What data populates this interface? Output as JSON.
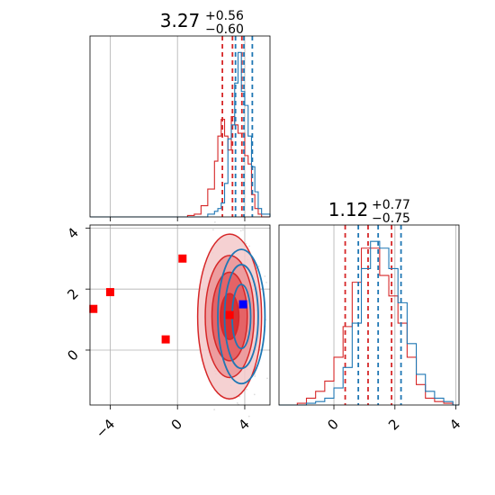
{
  "chart_data": [
    {
      "panel": "marginal-param-1",
      "type": "histogram",
      "title": {
        "value": "3.27",
        "plus": "+0.56",
        "minus": "−0.60"
      },
      "xlim": [
        -5.2,
        5.5
      ],
      "grid": true,
      "series": [
        {
          "color": "#d62728",
          "bins": [
            -5.2,
            -4.2,
            -3.2,
            -2.2,
            -1.2,
            -0.2,
            0.6,
            1.0,
            1.4,
            1.8,
            2.2,
            2.4,
            2.6,
            2.8,
            3.0,
            3.2,
            3.4,
            3.6,
            3.8,
            4.0,
            4.2,
            4.4,
            4.6,
            4.8,
            5.0,
            5.5
          ],
          "counts": [
            0,
            0,
            0,
            0,
            0,
            0,
            1,
            2,
            8,
            20,
            40,
            58,
            70,
            58,
            48,
            72,
            66,
            60,
            60,
            44,
            38,
            16,
            6,
            2,
            0
          ],
          "quantiles": [
            2.67,
            3.27,
            3.83
          ]
        },
        {
          "color": "#1f77b4",
          "bins": [
            -5.2,
            -4.2,
            -3.2,
            -2.2,
            -1.2,
            -0.2,
            0.6,
            1.0,
            1.4,
            1.8,
            2.2,
            2.4,
            2.6,
            2.8,
            3.0,
            3.2,
            3.4,
            3.6,
            3.8,
            4.0,
            4.2,
            4.4,
            4.6,
            4.8,
            5.0,
            5.5
          ],
          "counts": [
            0,
            0,
            0,
            0,
            0,
            0,
            0,
            0,
            0,
            2,
            4,
            6,
            10,
            24,
            56,
            66,
            96,
            118,
            90,
            80,
            58,
            36,
            18,
            6,
            2
          ],
          "quantiles": [
            3.45,
            3.95,
            4.45
          ]
        }
      ]
    },
    {
      "panel": "joint-param-1-vs-param-2",
      "type": "contour",
      "xlim": [
        -5.2,
        5.5
      ],
      "ylim": [
        -1.8,
        4.1
      ],
      "xticks": [
        "−4",
        "0",
        "4"
      ],
      "yticks": [
        "0",
        "2",
        "4"
      ],
      "grid": true,
      "series": [
        {
          "color": "#d62728",
          "center": [
            3.1,
            1.1
          ],
          "levels": [
            [
              0.55,
              0.75
            ],
            [
              1.05,
              1.45
            ],
            [
              1.45,
              2.0
            ],
            [
              1.9,
              2.7
            ]
          ]
        },
        {
          "color": "#1f77b4",
          "center": [
            3.8,
            1.1
          ],
          "levels": [
            [
              0.55,
              1.05
            ],
            [
              1.0,
              1.7
            ],
            [
              1.4,
              2.2
            ]
          ]
        }
      ],
      "markers": [
        {
          "color": "#ff0000",
          "points": [
            [
              -4.0,
              1.9
            ],
            [
              -0.7,
              0.35
            ],
            [
              0.3,
              3.0
            ],
            [
              -5.0,
              1.35
            ],
            [
              3.1,
              1.15
            ]
          ]
        },
        {
          "color": "#0000ff",
          "points": [
            [
              3.9,
              1.5
            ]
          ]
        }
      ]
    },
    {
      "panel": "marginal-param-2",
      "type": "histogram",
      "title": {
        "value": "1.12",
        "plus": "+0.77",
        "minus": "−0.75"
      },
      "xlim": [
        -1.8,
        4.1
      ],
      "xticks": [
        "0",
        "2",
        "4"
      ],
      "grid": true,
      "series": [
        {
          "color": "#d62728",
          "bins": [
            -1.8,
            -1.5,
            -1.2,
            -0.9,
            -0.6,
            -0.3,
            0.0,
            0.3,
            0.6,
            0.9,
            1.2,
            1.5,
            1.8,
            2.1,
            2.4,
            2.7,
            3.0,
            3.3,
            3.6,
            3.9,
            4.1
          ],
          "counts": [
            0,
            0,
            1,
            4,
            8,
            14,
            28,
            46,
            72,
            92,
            92,
            76,
            64,
            48,
            28,
            12,
            4,
            2,
            1,
            0
          ],
          "quantiles": [
            0.37,
            1.12,
            1.89
          ]
        },
        {
          "color": "#1f77b4",
          "bins": [
            -1.8,
            -1.5,
            -1.2,
            -0.9,
            -0.6,
            -0.3,
            0.0,
            0.3,
            0.6,
            0.9,
            1.2,
            1.5,
            1.8,
            2.1,
            2.4,
            2.7,
            3.0,
            3.3,
            3.6,
            3.9,
            4.1
          ],
          "counts": [
            0,
            0,
            0,
            1,
            2,
            4,
            10,
            22,
            48,
            80,
            96,
            92,
            80,
            60,
            36,
            18,
            8,
            4,
            2,
            0
          ],
          "quantiles": [
            0.8,
            1.45,
            2.2
          ]
        }
      ]
    }
  ]
}
